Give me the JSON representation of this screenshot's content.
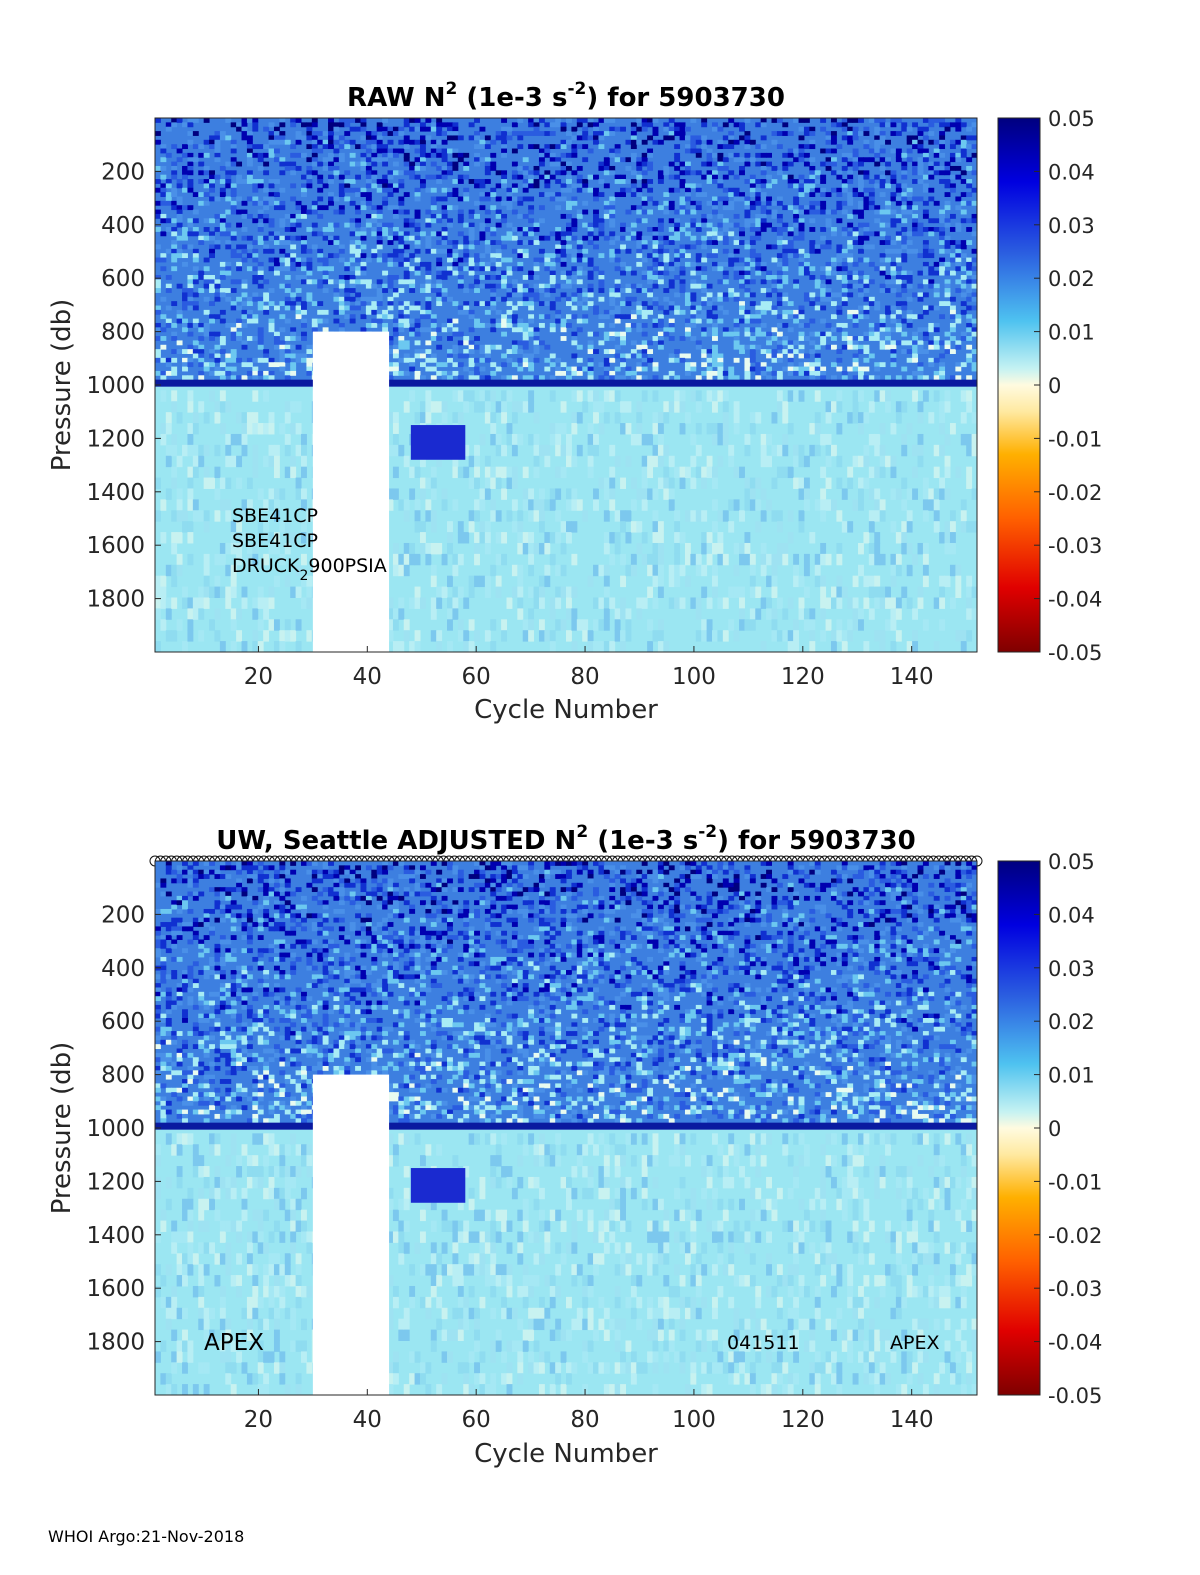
{
  "chart_data": [
    {
      "type": "heatmap",
      "title": {
        "prefix": "RAW N",
        "sup1": "2",
        "mid": " (1e-3 s",
        "sup2": "-2",
        "suffix": ") for 5903730"
      },
      "xlabel": "Cycle Number",
      "ylabel": "Pressure (db)",
      "xlim": [
        1,
        152
      ],
      "ylim": [
        0,
        2000
      ],
      "y_reversed": true,
      "xticks": [
        "20",
        "40",
        "60",
        "80",
        "100",
        "120",
        "140"
      ],
      "yticks": [
        "200",
        "400",
        "600",
        "800",
        "1000",
        "1200",
        "1400",
        "1600",
        "1800"
      ],
      "colorbar": {
        "ticks": [
          "0.05",
          "0.04",
          "0.03",
          "0.02",
          "0.01",
          "0",
          "-0.01",
          "-0.02",
          "-0.03",
          "-0.04",
          "-0.05"
        ],
        "range": [
          -0.05,
          0.05
        ]
      },
      "annotations": {
        "line1": "SBE41CP",
        "line2": "SBE41CP",
        "line3_a": "DRUCK",
        "line3_sub": "2",
        "line3_b": "900PSIA"
      },
      "gap_cycles": [
        30,
        44
      ]
    },
    {
      "type": "heatmap",
      "title": {
        "prefix": "UW, Seattle  ADJUSTED N",
        "sup1": "2",
        "mid": " (1e-3 s",
        "sup2": "-2",
        "suffix": ") for 5903730"
      },
      "xlabel": "Cycle Number",
      "ylabel": "Pressure (db)",
      "xlim": [
        1,
        152
      ],
      "ylim": [
        0,
        2000
      ],
      "y_reversed": true,
      "xticks": [
        "20",
        "40",
        "60",
        "80",
        "100",
        "120",
        "140"
      ],
      "yticks": [
        "200",
        "400",
        "600",
        "800",
        "1000",
        "1200",
        "1400",
        "1600",
        "1800"
      ],
      "colorbar": {
        "ticks": [
          "0.05",
          "0.04",
          "0.03",
          "0.02",
          "0.01",
          "0",
          "-0.01",
          "-0.02",
          "-0.03",
          "-0.04",
          "-0.05"
        ],
        "range": [
          -0.05,
          0.05
        ]
      },
      "annotations": {
        "left": "APEX",
        "mid": "041511",
        "right": "APEX"
      },
      "qc_markers": true,
      "gap_cycles": [
        30,
        44
      ]
    }
  ],
  "footer": "WHOI Argo:21-Nov-2018",
  "colors": {
    "high": "#00007f",
    "zero": "#fffbe0",
    "low": "#7f0000"
  }
}
